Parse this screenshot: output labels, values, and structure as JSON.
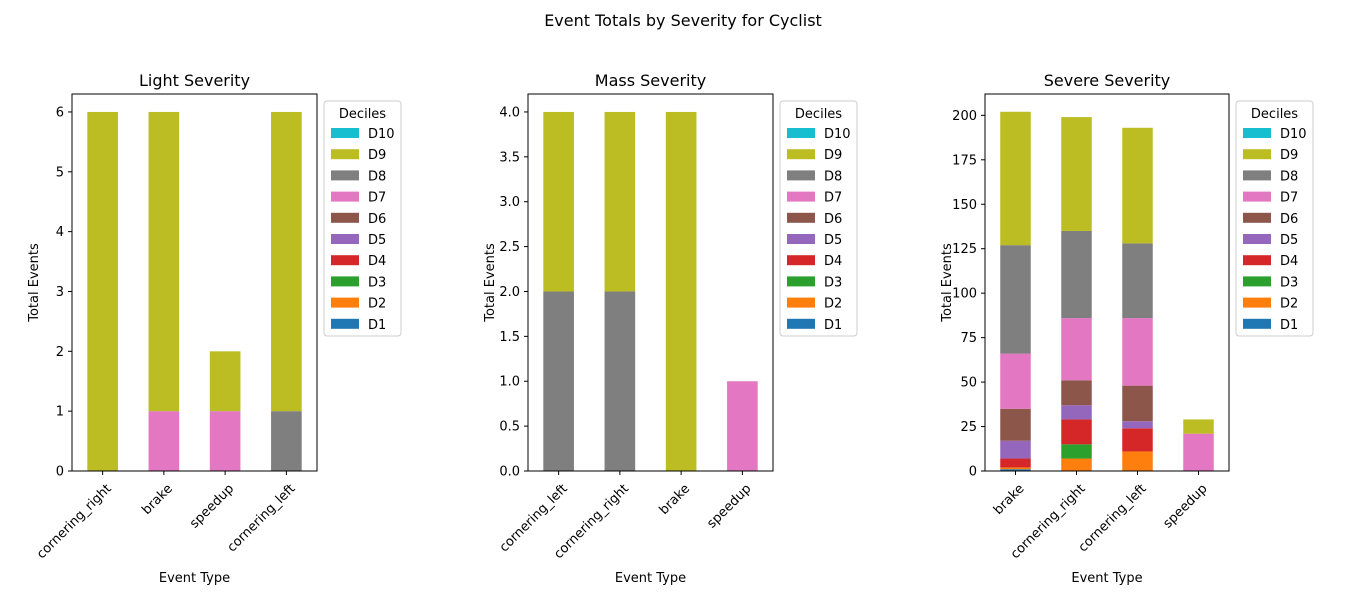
{
  "figure": {
    "title": "Event Totals by Severity for Cyclist"
  },
  "chart_data": [
    {
      "type": "bar",
      "stacked": true,
      "title": "Light Severity",
      "xlabel": "Event Type",
      "ylabel": "Total Events",
      "categories": [
        "cornering_right",
        "brake",
        "speedup",
        "cornering_left"
      ],
      "ylim": [
        0,
        6.3
      ],
      "yticks": [
        "0",
        "1",
        "2",
        "3",
        "4",
        "5",
        "6"
      ],
      "legend_title": "Deciles",
      "legend_position": "outside-upper-right",
      "series": [
        {
          "name": "D1",
          "color": "#1f77b4",
          "values": [
            0,
            0,
            0,
            0
          ]
        },
        {
          "name": "D2",
          "color": "#ff7f0e",
          "values": [
            0,
            0,
            0,
            0
          ]
        },
        {
          "name": "D3",
          "color": "#2ca02c",
          "values": [
            0,
            0,
            0,
            0
          ]
        },
        {
          "name": "D4",
          "color": "#d62728",
          "values": [
            0,
            0,
            0,
            0
          ]
        },
        {
          "name": "D5",
          "color": "#9467bd",
          "values": [
            0,
            0,
            0,
            0
          ]
        },
        {
          "name": "D6",
          "color": "#8c564b",
          "values": [
            0,
            0,
            0,
            0
          ]
        },
        {
          "name": "D7",
          "color": "#e377c2",
          "values": [
            0,
            1,
            1,
            0
          ]
        },
        {
          "name": "D8",
          "color": "#7f7f7f",
          "values": [
            0,
            0,
            0,
            1
          ]
        },
        {
          "name": "D9",
          "color": "#bcbd22",
          "values": [
            6,
            5,
            1,
            5
          ]
        },
        {
          "name": "D10",
          "color": "#17becf",
          "values": [
            0,
            0,
            0,
            0
          ]
        }
      ]
    },
    {
      "type": "bar",
      "stacked": true,
      "title": "Mass Severity",
      "xlabel": "Event Type",
      "ylabel": "Total Events",
      "categories": [
        "cornering_left",
        "cornering_right",
        "brake",
        "speedup"
      ],
      "ylim": [
        0,
        4.2
      ],
      "yticks": [
        "0.0",
        "0.5",
        "1.0",
        "1.5",
        "2.0",
        "2.5",
        "3.0",
        "3.5",
        "4.0"
      ],
      "legend_title": "Deciles",
      "legend_position": "outside-upper-right",
      "series": [
        {
          "name": "D1",
          "color": "#1f77b4",
          "values": [
            0,
            0,
            0,
            0
          ]
        },
        {
          "name": "D2",
          "color": "#ff7f0e",
          "values": [
            0,
            0,
            0,
            0
          ]
        },
        {
          "name": "D3",
          "color": "#2ca02c",
          "values": [
            0,
            0,
            0,
            0
          ]
        },
        {
          "name": "D4",
          "color": "#d62728",
          "values": [
            0,
            0,
            0,
            0
          ]
        },
        {
          "name": "D5",
          "color": "#9467bd",
          "values": [
            0,
            0,
            0,
            0
          ]
        },
        {
          "name": "D6",
          "color": "#8c564b",
          "values": [
            0,
            0,
            0,
            0
          ]
        },
        {
          "name": "D7",
          "color": "#e377c2",
          "values": [
            0,
            0,
            0,
            1
          ]
        },
        {
          "name": "D8",
          "color": "#7f7f7f",
          "values": [
            2,
            2,
            0,
            0
          ]
        },
        {
          "name": "D9",
          "color": "#bcbd22",
          "values": [
            2,
            2,
            4,
            0
          ]
        },
        {
          "name": "D10",
          "color": "#17becf",
          "values": [
            0,
            0,
            0,
            0
          ]
        }
      ]
    },
    {
      "type": "bar",
      "stacked": true,
      "title": "Severe Severity",
      "xlabel": "Event Type",
      "ylabel": "Total Events",
      "categories": [
        "brake",
        "cornering_right",
        "cornering_left",
        "speedup"
      ],
      "ylim": [
        0,
        212
      ],
      "yticks": [
        "0",
        "25",
        "50",
        "75",
        "100",
        "125",
        "150",
        "175",
        "200"
      ],
      "legend_title": "Deciles",
      "legend_position": "outside-upper-right",
      "series": [
        {
          "name": "D1",
          "color": "#1f77b4",
          "values": [
            1,
            0,
            0,
            0
          ]
        },
        {
          "name": "D2",
          "color": "#ff7f0e",
          "values": [
            1,
            7,
            11,
            0
          ]
        },
        {
          "name": "D3",
          "color": "#2ca02c",
          "values": [
            0,
            8,
            0,
            0
          ]
        },
        {
          "name": "D4",
          "color": "#d62728",
          "values": [
            5,
            14,
            13,
            0
          ]
        },
        {
          "name": "D5",
          "color": "#9467bd",
          "values": [
            10,
            8,
            4,
            0
          ]
        },
        {
          "name": "D6",
          "color": "#8c564b",
          "values": [
            18,
            14,
            20,
            0
          ]
        },
        {
          "name": "D7",
          "color": "#e377c2",
          "values": [
            31,
            35,
            38,
            21
          ]
        },
        {
          "name": "D8",
          "color": "#7f7f7f",
          "values": [
            61,
            49,
            42,
            0
          ]
        },
        {
          "name": "D9",
          "color": "#bcbd22",
          "values": [
            75,
            64,
            65,
            8
          ]
        },
        {
          "name": "D10",
          "color": "#17becf",
          "values": [
            0,
            0,
            0,
            0
          ]
        }
      ]
    }
  ]
}
